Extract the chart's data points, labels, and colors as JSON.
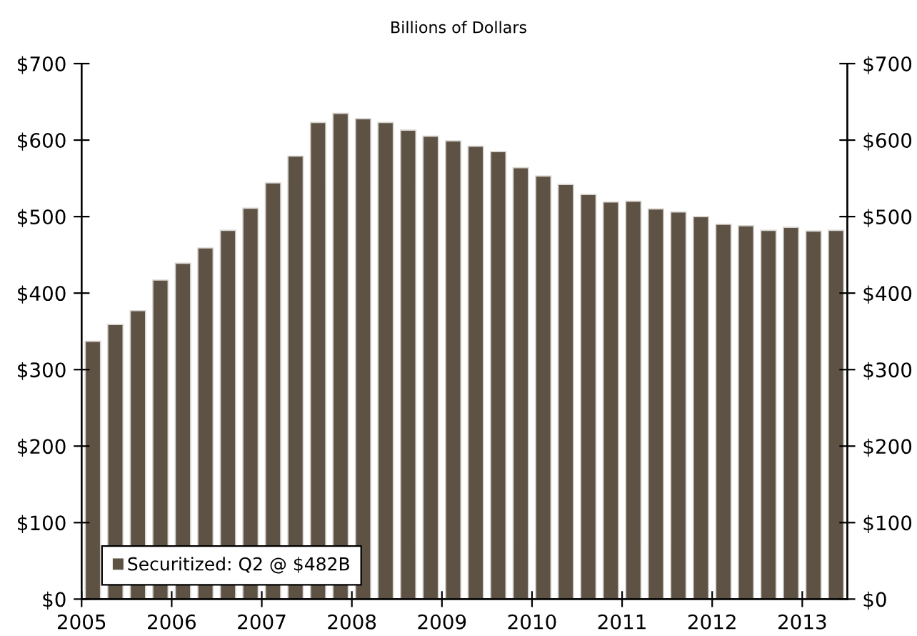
{
  "chart_data": {
    "type": "bar",
    "subtitle": "Billions of Dollars",
    "x": [
      2005.125,
      2005.375,
      2005.625,
      2005.875,
      2006.125,
      2006.375,
      2006.625,
      2006.875,
      2007.125,
      2007.375,
      2007.625,
      2007.875,
      2008.125,
      2008.375,
      2008.625,
      2008.875,
      2009.125,
      2009.375,
      2009.625,
      2009.875,
      2010.125,
      2010.375,
      2010.625,
      2010.875,
      2011.125,
      2011.375,
      2011.625,
      2011.875,
      2012.125,
      2012.375,
      2012.625,
      2012.875,
      2013.125,
      2013.375
    ],
    "series": [
      {
        "name": "Securitized: Q2 @ $482B",
        "color": "#5e5245",
        "values": [
          337,
          359,
          377,
          417,
          439,
          459,
          482,
          511,
          544,
          579,
          623,
          635,
          628,
          623,
          613,
          605,
          599,
          592,
          585,
          564,
          553,
          542,
          529,
          519,
          520,
          510,
          506,
          500,
          490,
          488,
          482,
          486,
          481,
          482
        ]
      }
    ],
    "xlim": [
      2005,
      2013.5
    ],
    "xticks": [
      2005,
      2006,
      2007,
      2008,
      2009,
      2010,
      2011,
      2012,
      2013
    ],
    "ylim": [
      0,
      700
    ],
    "yticks": [
      {
        "value": 0,
        "label": "$0"
      },
      {
        "value": 100,
        "label": "$100"
      },
      {
        "value": 200,
        "label": "$200"
      },
      {
        "value": 300,
        "label": "$300"
      },
      {
        "value": 400,
        "label": "$400"
      },
      {
        "value": 500,
        "label": "$500"
      },
      {
        "value": 600,
        "label": "$600"
      },
      {
        "value": 700,
        "label": "$700"
      }
    ],
    "y2lim": [
      0,
      700
    ],
    "y2ticks": [
      {
        "value": 0,
        "label": "$0"
      },
      {
        "value": 100,
        "label": "$100"
      },
      {
        "value": 200,
        "label": "$200"
      },
      {
        "value": 300,
        "label": "$300"
      },
      {
        "value": 400,
        "label": "$400"
      },
      {
        "value": 500,
        "label": "$500"
      },
      {
        "value": 600,
        "label": "$600"
      },
      {
        "value": 700,
        "label": "$700"
      }
    ],
    "grid": false,
    "legend": "bottom left"
  }
}
